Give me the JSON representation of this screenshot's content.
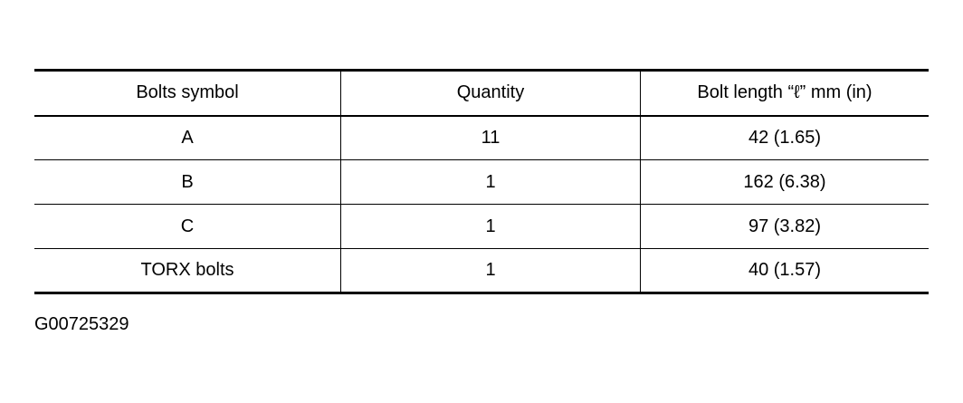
{
  "table": {
    "headers": [
      "Bolts symbol",
      "Quantity",
      "Bolt length “ℓ” mm (in)"
    ],
    "rows": [
      [
        "A",
        "11",
        "42 (1.65)"
      ],
      [
        "B",
        "1",
        "162 (6.38)"
      ],
      [
        "C",
        "1",
        "97 (3.82)"
      ],
      [
        "TORX bolts",
        "1",
        "40 (1.57)"
      ]
    ]
  },
  "figure_id": "G00725329"
}
